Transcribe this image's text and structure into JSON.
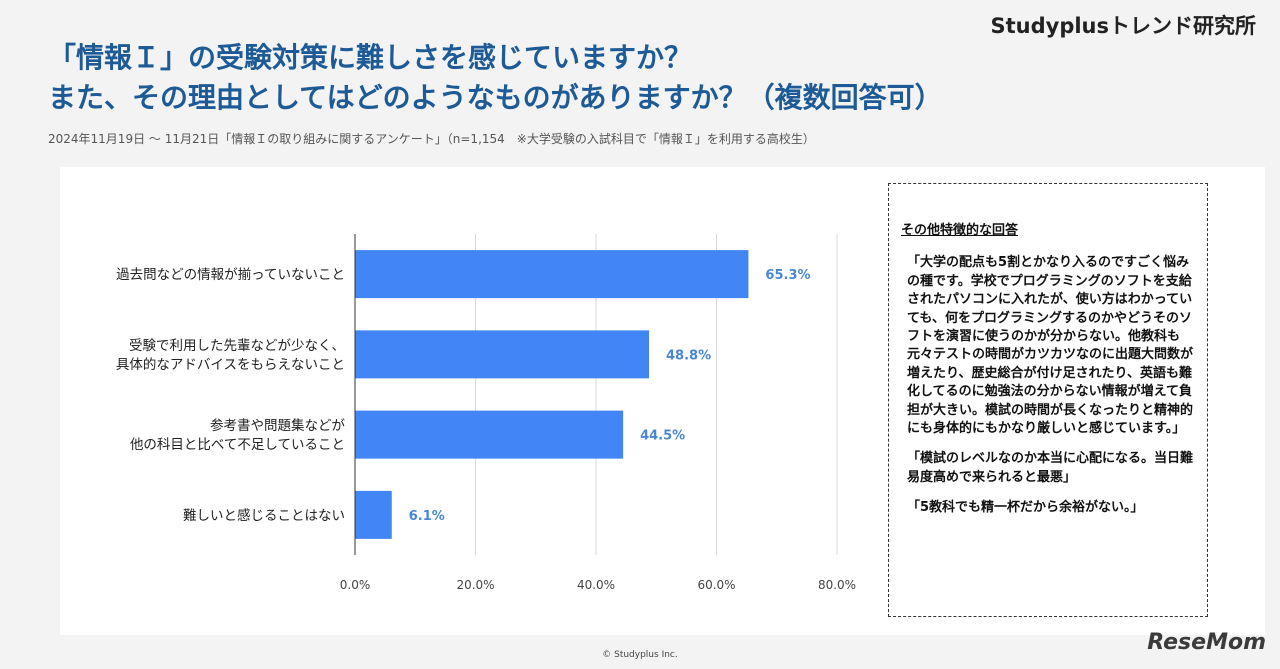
{
  "header": {
    "brand": "Studyplusトレンド研究所",
    "title_line1": "「情報Ｉ」の受験対策に難しさを感じていますか？",
    "title_line2": "また、その理由としてはどのようなものがありますか？（複数回答可）",
    "subtitle": "2024年11月19日 〜 11月21日「情報Ｉの取り組みに関するアンケート」（n=1,154　※大学受験の入試科目で「情報Ｉ」を利用する高校生）"
  },
  "chart_data": {
    "type": "bar",
    "orientation": "horizontal",
    "categories": [
      [
        "過去問などの情報が揃っていないこと"
      ],
      [
        "受験で利用した先輩などが少なく、",
        "具体的なアドバイスをもらえないこと"
      ],
      [
        "参考書や問題集などが",
        "他の科目と比べて不足していること"
      ],
      [
        "難しいと感じることはない"
      ]
    ],
    "values": [
      65.3,
      48.8,
      44.5,
      6.1
    ],
    "data_labels": [
      "65.3%",
      "48.8%",
      "44.5%",
      "6.1%"
    ],
    "xlim": [
      0,
      80
    ],
    "xticks": [
      "0.0%",
      "20.0%",
      "40.0%",
      "60.0%",
      "80.0%"
    ],
    "grid": true,
    "bar_color": "#4285f4",
    "label_color": "#4a86d4"
  },
  "notes": {
    "heading": "その他特徴的な回答",
    "quotes": [
      "「大学の配点も5割とかなり入るのですごく悩みの種です。学校でプログラミングのソフトを支給されたパソコンに入れたが、使い方はわかっていても、何をプログラミングするのかやどうそのソフトを演習に使うのかが分からない。他教科も元々テストの時間がカツカツなのに出題大問数が増えたり、歴史総合が付け足されたり、英語も難化してるのに勉強法の分からない情報が増えて負担が大きい。模試の時間が長くなったりと精神的にも身体的にもかなり厳しいと感じています。」",
      "「模試のレベルなのか本当に心配になる。当日難易度高めで来られると最悪」",
      "「5教科でも精一杯だから余裕がない。」"
    ]
  },
  "footer": {
    "copyright": "© Studyplus Inc.",
    "logo": "ReseMom"
  }
}
